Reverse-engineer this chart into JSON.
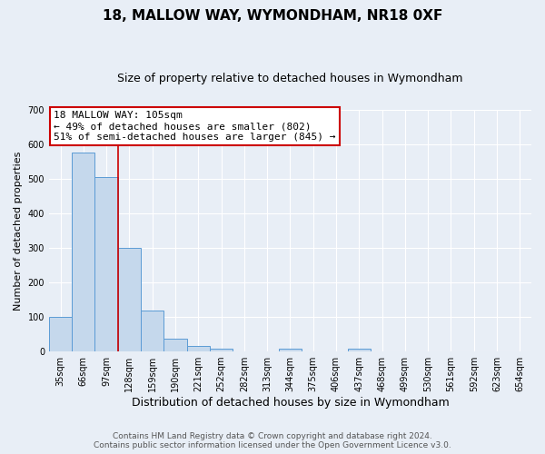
{
  "title": "18, MALLOW WAY, WYMONDHAM, NR18 0XF",
  "subtitle": "Size of property relative to detached houses in Wymondham",
  "xlabel": "Distribution of detached houses by size in Wymondham",
  "ylabel": "Number of detached properties",
  "bar_labels": [
    "35sqm",
    "66sqm",
    "97sqm",
    "128sqm",
    "159sqm",
    "190sqm",
    "221sqm",
    "252sqm",
    "282sqm",
    "313sqm",
    "344sqm",
    "375sqm",
    "406sqm",
    "437sqm",
    "468sqm",
    "499sqm",
    "530sqm",
    "561sqm",
    "592sqm",
    "623sqm",
    "654sqm"
  ],
  "bar_values": [
    100,
    575,
    505,
    300,
    118,
    37,
    15,
    8,
    0,
    0,
    8,
    0,
    0,
    8,
    0,
    0,
    0,
    0,
    0,
    0,
    0
  ],
  "bar_color": "#c5d8ec",
  "bar_edge_color": "#5b9bd5",
  "ylim": [
    0,
    700
  ],
  "yticks": [
    0,
    100,
    200,
    300,
    400,
    500,
    600,
    700
  ],
  "property_line_x": 2.5,
  "property_line_color": "#cc0000",
  "annotation_text": "18 MALLOW WAY: 105sqm\n← 49% of detached houses are smaller (802)\n51% of semi-detached houses are larger (845) →",
  "annotation_box_color": "#ffffff",
  "annotation_box_edge_color": "#cc0000",
  "footer_line1": "Contains HM Land Registry data © Crown copyright and database right 2024.",
  "footer_line2": "Contains public sector information licensed under the Open Government Licence v3.0.",
  "bg_color": "#e8eef6",
  "plot_bg_color": "#e8eef6",
  "grid_color": "#ffffff",
  "title_fontsize": 11,
  "subtitle_fontsize": 9,
  "xlabel_fontsize": 9,
  "ylabel_fontsize": 8,
  "tick_fontsize": 7,
  "footer_fontsize": 6.5,
  "annotation_fontsize": 8
}
